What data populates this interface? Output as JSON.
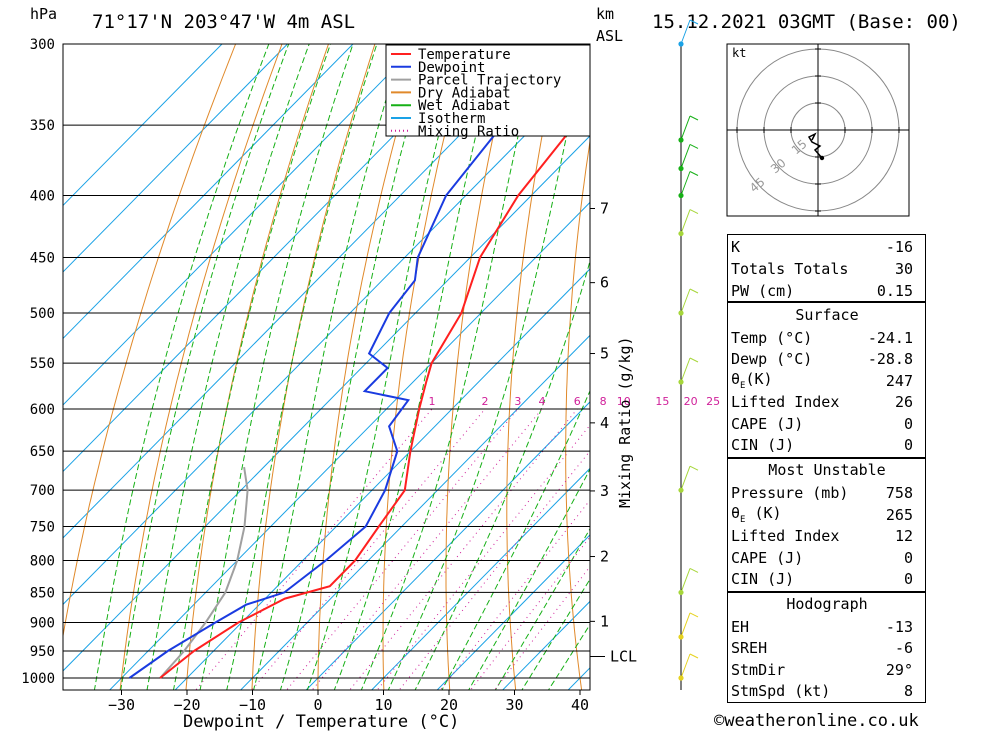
{
  "header": {
    "hpa": "hPa",
    "location": "71°17'N  203°47'W  4m  ASL",
    "km": "km",
    "asl": "ASL",
    "datetime": "15.12.2021  03GMT  (Base: 00)"
  },
  "chart_data": {
    "type": "skew-t",
    "xlabel": "Dewpoint / Temperature (°C)",
    "ylabel": "Mixing Ratio (g/kg)",
    "pressure_levels": [
      300,
      350,
      400,
      450,
      500,
      550,
      600,
      650,
      700,
      750,
      800,
      850,
      900,
      950,
      1000
    ],
    "temperature_ticks": [
      -30,
      -20,
      -10,
      0,
      10,
      20,
      30,
      40
    ],
    "km_ticks": [
      1,
      2,
      3,
      4,
      5,
      6,
      7
    ],
    "lcl_label": "LCL",
    "mixing_ratio_labels": [
      "1",
      "2",
      "3",
      "4",
      "6",
      "8",
      "10",
      "15",
      "20",
      "25"
    ],
    "mixing_ratio_values": [
      1,
      2,
      3,
      4,
      6,
      8,
      10,
      15,
      20,
      25
    ],
    "legend": [
      "Temperature",
      "Dewpoint",
      "Parcel Trajectory",
      "Dry Adiabat",
      "Wet Adiabat",
      "Isotherm",
      "Mixing Ratio"
    ],
    "colors": {
      "temperature": "#ff2020",
      "dewpoint": "#1a3be0",
      "parcel": "#a0a0a0",
      "dry_adiabat": "#e0892a",
      "wet_adiabat": "#16b016",
      "isotherm": "#1aa2e6",
      "mixing_ratio": "#d0209a"
    },
    "temperature": [
      {
        "p": 300,
        "t": -43
      },
      {
        "p": 330,
        "t": -45
      },
      {
        "p": 350,
        "t": -44
      },
      {
        "p": 400,
        "t": -42
      },
      {
        "p": 450,
        "t": -38.5
      },
      {
        "p": 500,
        "t": -33
      },
      {
        "p": 550,
        "t": -30
      },
      {
        "p": 570,
        "t": -28
      },
      {
        "p": 600,
        "t": -25
      },
      {
        "p": 650,
        "t": -20
      },
      {
        "p": 700,
        "t": -15
      },
      {
        "p": 750,
        "t": -13.5
      },
      {
        "p": 800,
        "t": -12
      },
      {
        "p": 840,
        "t": -12
      },
      {
        "p": 860,
        "t": -17
      },
      {
        "p": 900,
        "t": -20.5
      },
      {
        "p": 950,
        "t": -23
      },
      {
        "p": 1000,
        "t": -24.1
      }
    ],
    "dewpoint": [
      {
        "p": 300,
        "t": -58
      },
      {
        "p": 330,
        "t": -56
      },
      {
        "p": 350,
        "t": -55
      },
      {
        "p": 400,
        "t": -53
      },
      {
        "p": 450,
        "t": -48
      },
      {
        "p": 470,
        "t": -45
      },
      {
        "p": 500,
        "t": -44
      },
      {
        "p": 540,
        "t": -41
      },
      {
        "p": 555,
        "t": -36
      },
      {
        "p": 580,
        "t": -36
      },
      {
        "p": 590,
        "t": -28
      },
      {
        "p": 620,
        "t": -27
      },
      {
        "p": 650,
        "t": -22
      },
      {
        "p": 700,
        "t": -18
      },
      {
        "p": 750,
        "t": -15.5
      },
      {
        "p": 800,
        "t": -16.5
      },
      {
        "p": 850,
        "t": -18
      },
      {
        "p": 870,
        "t": -22
      },
      {
        "p": 900,
        "t": -24
      },
      {
        "p": 950,
        "t": -27
      },
      {
        "p": 1000,
        "t": -28.8
      }
    ],
    "parcel": [
      {
        "p": 670,
        "t": -43
      },
      {
        "p": 700,
        "t": -39
      },
      {
        "p": 750,
        "t": -34
      },
      {
        "p": 800,
        "t": -30
      },
      {
        "p": 850,
        "t": -27
      },
      {
        "p": 900,
        "t": -25.5
      },
      {
        "p": 950,
        "t": -24.5
      },
      {
        "p": 1000,
        "t": -24.1
      }
    ],
    "hodograph": {
      "unit": "kt",
      "ring_labels": [
        "15",
        "30",
        "45"
      ]
    },
    "indices": {
      "K": "-16",
      "Totals Totals": "30",
      "PW (cm)": "0.15"
    },
    "surface": {
      "title": "Surface",
      "Temp (°C)": "-24.1",
      "Dewp (°C)": "-28.8",
      "θE(K)": "247",
      "Lifted Index": "26",
      "CAPE (J)": "0",
      "CIN (J)": "0"
    },
    "most_unstable": {
      "title": "Most Unstable",
      "Pressure (mb)": "758",
      "θE (K)": "265",
      "Lifted Index": "12",
      "CAPE (J)": "0",
      "CIN (J)": "0"
    },
    "hodograph_stats": {
      "title": "Hodograph",
      "EH": "-13",
      "SREH": "-6",
      "StmDir": "29°",
      "StmSpd (kt)": "8"
    }
  },
  "footer": {
    "copyright": "©weatheronline.co.uk"
  }
}
